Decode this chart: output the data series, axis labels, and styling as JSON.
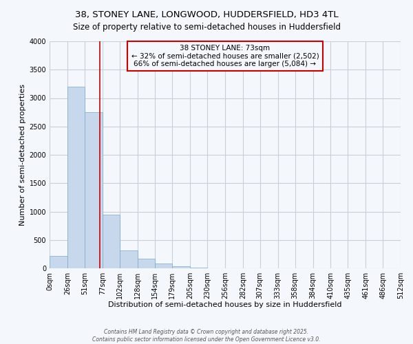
{
  "title": "38, STONEY LANE, LONGWOOD, HUDDERSFIELD, HD3 4TL",
  "subtitle": "Size of property relative to semi-detached houses in Huddersfield",
  "xlabel": "Distribution of semi-detached houses by size in Huddersfield",
  "ylabel": "Number of semi-detached properties",
  "bins": [
    0,
    26,
    51,
    77,
    102,
    128,
    154,
    179,
    205,
    230,
    256,
    282,
    307,
    333,
    358,
    384,
    410,
    435,
    461,
    486,
    512
  ],
  "bin_labels": [
    "0sqm",
    "26sqm",
    "51sqm",
    "77sqm",
    "102sqm",
    "128sqm",
    "154sqm",
    "179sqm",
    "205sqm",
    "230sqm",
    "256sqm",
    "282sqm",
    "307sqm",
    "333sqm",
    "358sqm",
    "384sqm",
    "410sqm",
    "435sqm",
    "461sqm",
    "486sqm",
    "512sqm"
  ],
  "counts": [
    220,
    3200,
    2750,
    950,
    320,
    165,
    90,
    35,
    10,
    5,
    3,
    2,
    2,
    1,
    1,
    0,
    0,
    0,
    0,
    0
  ],
  "property_line_x": 73,
  "bar_color": "#c8d8ec",
  "bar_edgecolor": "#7aa8cc",
  "line_color": "#cc0000",
  "annotation_text": "38 STONEY LANE: 73sqm\n← 32% of semi-detached houses are smaller (2,502)\n66% of semi-detached houses are larger (5,084) →",
  "annotation_box_edgecolor": "#cc0000",
  "ylim": [
    0,
    4000
  ],
  "yticks": [
    0,
    500,
    1000,
    1500,
    2000,
    2500,
    3000,
    3500,
    4000
  ],
  "background_color": "#f4f7fb",
  "grid_color": "#c8d0dc",
  "footer_line1": "Contains HM Land Registry data © Crown copyright and database right 2025.",
  "footer_line2": "Contains public sector information licensed under the Open Government Licence v3.0.",
  "title_fontsize": 9.5,
  "subtitle_fontsize": 8.5,
  "xlabel_fontsize": 8,
  "ylabel_fontsize": 8,
  "tick_fontsize": 7,
  "annot_fontsize": 7.5
}
